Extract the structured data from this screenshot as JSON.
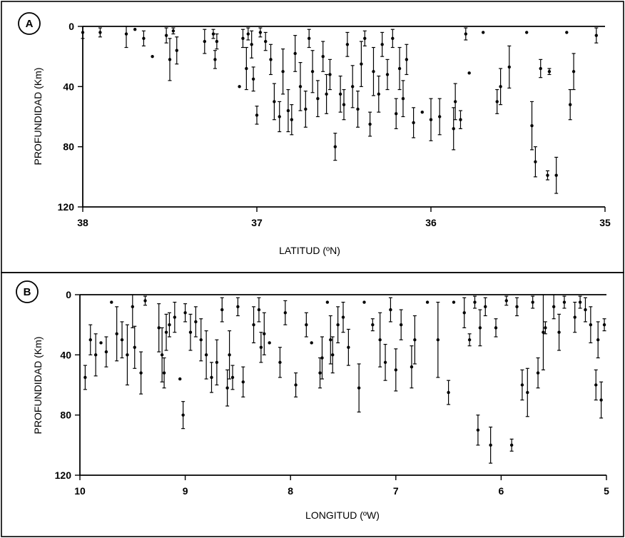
{
  "chart_data": [
    {
      "type": "scatter",
      "panel": "A",
      "xlabel": "LATITUD (ºN)",
      "ylabel": "PROFUNDIDAD (Km)",
      "xlim": [
        38,
        35
      ],
      "ylim": [
        120,
        0
      ],
      "xticks": [
        "38",
        "37",
        "36",
        "35"
      ],
      "yticks": [
        "0",
        "40",
        "80",
        "120"
      ],
      "points": [
        {
          "x": 38.0,
          "y": 4,
          "err": 4
        },
        {
          "x": 37.9,
          "y": 4,
          "err": 3
        },
        {
          "x": 37.75,
          "y": 5,
          "err": 9
        },
        {
          "x": 37.7,
          "y": 2,
          "err": 0
        },
        {
          "x": 37.65,
          "y": 8,
          "err": 5
        },
        {
          "x": 37.6,
          "y": 20,
          "err": 0
        },
        {
          "x": 37.52,
          "y": 6,
          "err": 5
        },
        {
          "x": 37.5,
          "y": 22,
          "err": 14
        },
        {
          "x": 37.48,
          "y": 3,
          "err": 2
        },
        {
          "x": 37.46,
          "y": 16,
          "err": 9
        },
        {
          "x": 37.3,
          "y": 10,
          "err": 8
        },
        {
          "x": 37.25,
          "y": 5,
          "err": 3
        },
        {
          "x": 37.24,
          "y": 22,
          "err": 6
        },
        {
          "x": 37.23,
          "y": 10,
          "err": 5
        },
        {
          "x": 37.1,
          "y": 40,
          "err": 0
        },
        {
          "x": 37.08,
          "y": 8,
          "err": 6
        },
        {
          "x": 37.06,
          "y": 28,
          "err": 14
        },
        {
          "x": 37.05,
          "y": 5,
          "err": 4
        },
        {
          "x": 37.03,
          "y": 12,
          "err": 9
        },
        {
          "x": 37.02,
          "y": 35,
          "err": 8
        },
        {
          "x": 37.0,
          "y": 59,
          "err": 6
        },
        {
          "x": 36.98,
          "y": 4,
          "err": 3
        },
        {
          "x": 36.95,
          "y": 10,
          "err": 6
        },
        {
          "x": 36.92,
          "y": 22,
          "err": 10
        },
        {
          "x": 36.9,
          "y": 50,
          "err": 12
        },
        {
          "x": 36.87,
          "y": 60,
          "err": 10
        },
        {
          "x": 36.85,
          "y": 30,
          "err": 15
        },
        {
          "x": 36.82,
          "y": 56,
          "err": 14
        },
        {
          "x": 36.8,
          "y": 62,
          "err": 10
        },
        {
          "x": 36.78,
          "y": 18,
          "err": 12
        },
        {
          "x": 36.75,
          "y": 40,
          "err": 16
        },
        {
          "x": 36.72,
          "y": 55,
          "err": 12
        },
        {
          "x": 36.7,
          "y": 8,
          "err": 6
        },
        {
          "x": 36.68,
          "y": 30,
          "err": 14
        },
        {
          "x": 36.65,
          "y": 48,
          "err": 12
        },
        {
          "x": 36.62,
          "y": 20,
          "err": 10
        },
        {
          "x": 36.6,
          "y": 45,
          "err": 13
        },
        {
          "x": 36.58,
          "y": 32,
          "err": 10
        },
        {
          "x": 36.55,
          "y": 80,
          "err": 9
        },
        {
          "x": 36.52,
          "y": 45,
          "err": 12
        },
        {
          "x": 36.5,
          "y": 52,
          "err": 10
        },
        {
          "x": 36.48,
          "y": 12,
          "err": 8
        },
        {
          "x": 36.45,
          "y": 40,
          "err": 14
        },
        {
          "x": 36.42,
          "y": 55,
          "err": 12
        },
        {
          "x": 36.4,
          "y": 25,
          "err": 15
        },
        {
          "x": 36.38,
          "y": 8,
          "err": 5
        },
        {
          "x": 36.35,
          "y": 65,
          "err": 8
        },
        {
          "x": 36.33,
          "y": 30,
          "err": 16
        },
        {
          "x": 36.3,
          "y": 45,
          "err": 12
        },
        {
          "x": 36.28,
          "y": 12,
          "err": 8
        },
        {
          "x": 36.25,
          "y": 32,
          "err": 10
        },
        {
          "x": 36.22,
          "y": 8,
          "err": 6
        },
        {
          "x": 36.2,
          "y": 58,
          "err": 10
        },
        {
          "x": 36.18,
          "y": 28,
          "err": 14
        },
        {
          "x": 36.16,
          "y": 48,
          "err": 12
        },
        {
          "x": 36.14,
          "y": 22,
          "err": 10
        },
        {
          "x": 36.1,
          "y": 64,
          "err": 10
        },
        {
          "x": 36.05,
          "y": 57,
          "err": 0
        },
        {
          "x": 36.0,
          "y": 62,
          "err": 14
        },
        {
          "x": 35.95,
          "y": 60,
          "err": 12
        },
        {
          "x": 35.87,
          "y": 68,
          "err": 14
        },
        {
          "x": 35.86,
          "y": 50,
          "err": 12
        },
        {
          "x": 35.83,
          "y": 62,
          "err": 6
        },
        {
          "x": 35.8,
          "y": 5,
          "err": 4
        },
        {
          "x": 35.78,
          "y": 31,
          "err": 0
        },
        {
          "x": 35.7,
          "y": 4,
          "err": 0
        },
        {
          "x": 35.62,
          "y": 50,
          "err": 8
        },
        {
          "x": 35.6,
          "y": 40,
          "err": 12
        },
        {
          "x": 35.55,
          "y": 27,
          "err": 14
        },
        {
          "x": 35.45,
          "y": 4,
          "err": 0
        },
        {
          "x": 35.42,
          "y": 66,
          "err": 16
        },
        {
          "x": 35.4,
          "y": 90,
          "err": 10
        },
        {
          "x": 35.37,
          "y": 28,
          "err": 6
        },
        {
          "x": 35.33,
          "y": 99,
          "err": 3
        },
        {
          "x": 35.32,
          "y": 30,
          "err": 2
        },
        {
          "x": 35.28,
          "y": 99,
          "err": 12
        },
        {
          "x": 35.22,
          "y": 4,
          "err": 0
        },
        {
          "x": 35.2,
          "y": 52,
          "err": 10
        },
        {
          "x": 35.18,
          "y": 30,
          "err": 12
        },
        {
          "x": 35.05,
          "y": 6,
          "err": 5
        }
      ]
    },
    {
      "type": "scatter",
      "panel": "B",
      "xlabel": "LONGITUD (ºW)",
      "ylabel": "PROFUNDIDAD (Km)",
      "xlim": [
        10,
        5
      ],
      "ylim": [
        120,
        0
      ],
      "xticks": [
        "10",
        "9",
        "8",
        "7",
        "6",
        "5"
      ],
      "yticks": [
        "0",
        "40",
        "80",
        "120"
      ],
      "points": [
        {
          "x": 9.95,
          "y": 55,
          "err": 8
        },
        {
          "x": 9.9,
          "y": 30,
          "err": 10
        },
        {
          "x": 9.85,
          "y": 40,
          "err": 14
        },
        {
          "x": 9.8,
          "y": 32,
          "err": 0
        },
        {
          "x": 9.75,
          "y": 38,
          "err": 10
        },
        {
          "x": 9.7,
          "y": 5,
          "err": 0
        },
        {
          "x": 9.65,
          "y": 26,
          "err": 18
        },
        {
          "x": 9.6,
          "y": 30,
          "err": 12
        },
        {
          "x": 9.55,
          "y": 40,
          "err": 20
        },
        {
          "x": 9.5,
          "y": 8,
          "err": 14
        },
        {
          "x": 9.48,
          "y": 35,
          "err": 14
        },
        {
          "x": 9.42,
          "y": 52,
          "err": 14
        },
        {
          "x": 9.38,
          "y": 4,
          "err": 3
        },
        {
          "x": 9.25,
          "y": 22,
          "err": 16
        },
        {
          "x": 9.22,
          "y": 40,
          "err": 18
        },
        {
          "x": 9.2,
          "y": 52,
          "err": 10
        },
        {
          "x": 9.18,
          "y": 25,
          "err": 12
        },
        {
          "x": 9.15,
          "y": 20,
          "err": 8
        },
        {
          "x": 9.1,
          "y": 15,
          "err": 10
        },
        {
          "x": 9.05,
          "y": 56,
          "err": 0
        },
        {
          "x": 9.02,
          "y": 80,
          "err": 9
        },
        {
          "x": 9.0,
          "y": 12,
          "err": 6
        },
        {
          "x": 8.95,
          "y": 25,
          "err": 12
        },
        {
          "x": 8.9,
          "y": 18,
          "err": 10
        },
        {
          "x": 8.85,
          "y": 30,
          "err": 14
        },
        {
          "x": 8.8,
          "y": 40,
          "err": 16
        },
        {
          "x": 8.75,
          "y": 55,
          "err": 10
        },
        {
          "x": 8.7,
          "y": 45,
          "err": 15
        },
        {
          "x": 8.65,
          "y": 10,
          "err": 8
        },
        {
          "x": 8.6,
          "y": 62,
          "err": 12
        },
        {
          "x": 8.58,
          "y": 40,
          "err": 16
        },
        {
          "x": 8.55,
          "y": 55,
          "err": 8
        },
        {
          "x": 8.5,
          "y": 8,
          "err": 6
        },
        {
          "x": 8.45,
          "y": 58,
          "err": 10
        },
        {
          "x": 8.35,
          "y": 20,
          "err": 12
        },
        {
          "x": 8.3,
          "y": 10,
          "err": 8
        },
        {
          "x": 8.28,
          "y": 35,
          "err": 10
        },
        {
          "x": 8.25,
          "y": 26,
          "err": 14
        },
        {
          "x": 8.2,
          "y": 32,
          "err": 0
        },
        {
          "x": 8.1,
          "y": 45,
          "err": 10
        },
        {
          "x": 8.05,
          "y": 12,
          "err": 8
        },
        {
          "x": 7.95,
          "y": 60,
          "err": 8
        },
        {
          "x": 7.85,
          "y": 20,
          "err": 8
        },
        {
          "x": 7.8,
          "y": 32,
          "err": 0
        },
        {
          "x": 7.72,
          "y": 52,
          "err": 10
        },
        {
          "x": 7.7,
          "y": 42,
          "err": 14
        },
        {
          "x": 7.65,
          "y": 5,
          "err": 0
        },
        {
          "x": 7.62,
          "y": 30,
          "err": 16
        },
        {
          "x": 7.6,
          "y": 40,
          "err": 12
        },
        {
          "x": 7.55,
          "y": 20,
          "err": 12
        },
        {
          "x": 7.5,
          "y": 15,
          "err": 10
        },
        {
          "x": 7.45,
          "y": 35,
          "err": 12
        },
        {
          "x": 7.35,
          "y": 62,
          "err": 16
        },
        {
          "x": 7.3,
          "y": 5,
          "err": 0
        },
        {
          "x": 7.22,
          "y": 20,
          "err": 4
        },
        {
          "x": 7.15,
          "y": 30,
          "err": 18
        },
        {
          "x": 7.1,
          "y": 45,
          "err": 12
        },
        {
          "x": 7.05,
          "y": 10,
          "err": 8
        },
        {
          "x": 7.0,
          "y": 50,
          "err": 14
        },
        {
          "x": 6.95,
          "y": 20,
          "err": 10
        },
        {
          "x": 6.85,
          "y": 48,
          "err": 14
        },
        {
          "x": 6.82,
          "y": 30,
          "err": 16
        },
        {
          "x": 6.7,
          "y": 5,
          "err": 0
        },
        {
          "x": 6.6,
          "y": 30,
          "err": 25
        },
        {
          "x": 6.5,
          "y": 65,
          "err": 8
        },
        {
          "x": 6.45,
          "y": 5,
          "err": 0
        },
        {
          "x": 6.35,
          "y": 12,
          "err": 10
        },
        {
          "x": 6.3,
          "y": 30,
          "err": 4
        },
        {
          "x": 6.25,
          "y": 5,
          "err": 4
        },
        {
          "x": 6.22,
          "y": 90,
          "err": 10
        },
        {
          "x": 6.2,
          "y": 22,
          "err": 12
        },
        {
          "x": 6.15,
          "y": 8,
          "err": 6
        },
        {
          "x": 6.1,
          "y": 100,
          "err": 12
        },
        {
          "x": 6.05,
          "y": 22,
          "err": 6
        },
        {
          "x": 5.95,
          "y": 4,
          "err": 3
        },
        {
          "x": 5.9,
          "y": 100,
          "err": 4
        },
        {
          "x": 5.85,
          "y": 8,
          "err": 6
        },
        {
          "x": 5.8,
          "y": 60,
          "err": 10
        },
        {
          "x": 5.75,
          "y": 65,
          "err": 16
        },
        {
          "x": 5.7,
          "y": 5,
          "err": 4
        },
        {
          "x": 5.65,
          "y": 52,
          "err": 10
        },
        {
          "x": 5.6,
          "y": 25,
          "err": 25
        },
        {
          "x": 5.58,
          "y": 22,
          "err": 4
        },
        {
          "x": 5.5,
          "y": 8,
          "err": 8
        },
        {
          "x": 5.45,
          "y": 25,
          "err": 12
        },
        {
          "x": 5.4,
          "y": 5,
          "err": 4
        },
        {
          "x": 5.3,
          "y": 15,
          "err": 10
        },
        {
          "x": 5.25,
          "y": 5,
          "err": 4
        },
        {
          "x": 5.2,
          "y": 10,
          "err": 8
        },
        {
          "x": 5.15,
          "y": 20,
          "err": 12
        },
        {
          "x": 5.1,
          "y": 60,
          "err": 10
        },
        {
          "x": 5.08,
          "y": 30,
          "err": 12
        },
        {
          "x": 5.05,
          "y": 70,
          "err": 12
        },
        {
          "x": 5.02,
          "y": 20,
          "err": 4
        }
      ]
    }
  ]
}
